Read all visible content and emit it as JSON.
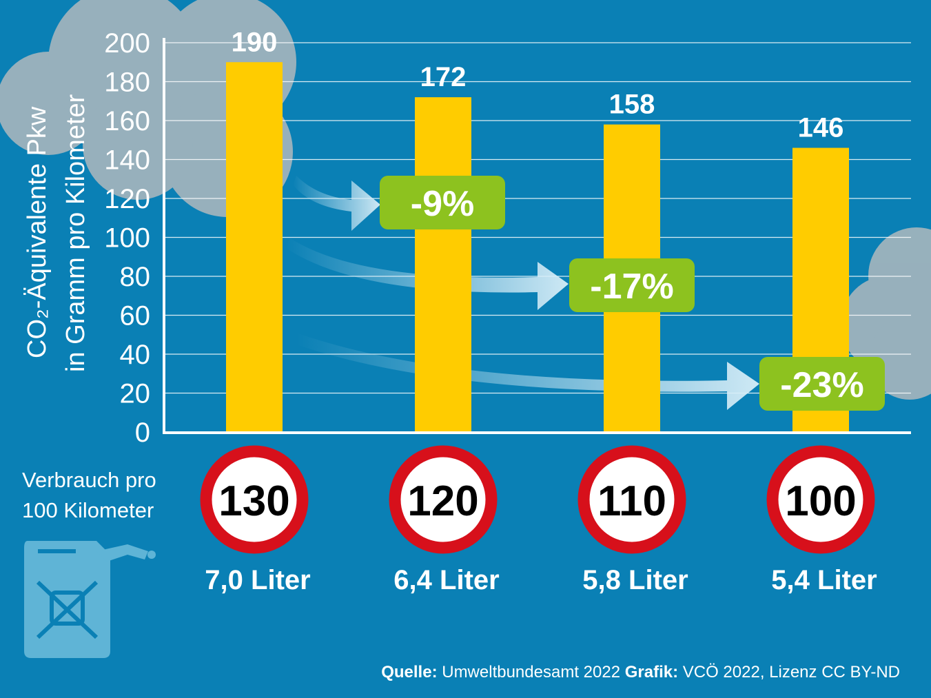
{
  "chart_data": {
    "type": "bar",
    "ylabel": "CO₂-Äquivalente Pkw in Gramm pro Kilometer",
    "ylabel_line1": "CO₂-Äquivalente Pkw",
    "ylabel_line2": "in Gramm pro Kilometer",
    "ylim": [
      0,
      200
    ],
    "yticks": [
      0,
      20,
      40,
      60,
      80,
      100,
      120,
      140,
      160,
      180,
      200
    ],
    "grid": true,
    "categories": [
      "130",
      "120",
      "110",
      "100"
    ],
    "values": [
      190,
      172,
      158,
      146
    ],
    "data_labels": [
      "190",
      "172",
      "158",
      "146"
    ],
    "consumption": [
      "7,0 Liter",
      "6,4 Liter",
      "5,8 Liter",
      "5,4 Liter"
    ],
    "reductions": [
      "-9%",
      "-17%",
      "-23%"
    ],
    "colors": {
      "background": "#0a80b5",
      "bar": "#ffcc00",
      "badge": "#8dc21f",
      "sign_ring": "#d7101b"
    }
  },
  "side_label": [
    "Verbrauch pro",
    "100 Kilometer"
  ],
  "icons": {
    "consumption": "fuel-canister-icon",
    "speed": "speed-limit-sign-icon"
  },
  "source": {
    "quelle_label": "Quelle:",
    "quelle_text": " Umweltbundesamt 2022 ",
    "grafik_label": "Grafik:",
    "grafik_text": " VCÖ 2022, Lizenz CC BY-ND"
  }
}
